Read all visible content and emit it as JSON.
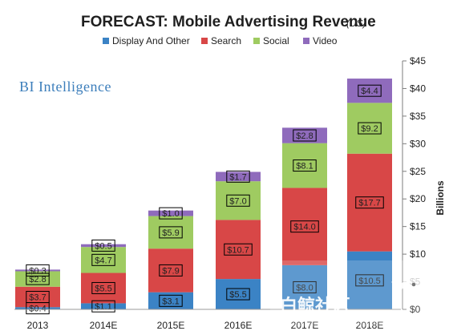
{
  "chart_data": {
    "type": "bar",
    "stacked": true,
    "title": "FORECAST: Mobile Advertising Revenue",
    "title_suffix": "(US)",
    "brand": "BI Intelligence",
    "watermark": "白鲸社区",
    "categories": [
      "2013",
      "2014E",
      "2015E",
      "2016E",
      "2017E",
      "2018E"
    ],
    "series": [
      {
        "name": "Display And Other",
        "color": "#3b83c5",
        "values": [
          0.4,
          1.1,
          3.1,
          5.5,
          8.0,
          10.5
        ],
        "labels": [
          "$0.4",
          "$1.1",
          "$3.1",
          "$5.5",
          "$8.0",
          "$10.5"
        ]
      },
      {
        "name": "Search",
        "color": "#d84747",
        "values": [
          3.7,
          5.5,
          7.9,
          10.7,
          14.0,
          17.7
        ],
        "labels": [
          "$3.7",
          "$5.5",
          "$7.9",
          "$10.7",
          "$14.0",
          "$17.7"
        ]
      },
      {
        "name": "Social",
        "color": "#9fcb61",
        "values": [
          2.8,
          4.7,
          5.9,
          7.0,
          8.1,
          9.2
        ],
        "labels": [
          "$2.8",
          "$4.7",
          "$5.9",
          "$7.0",
          "$8.1",
          "$9.2"
        ]
      },
      {
        "name": "Video",
        "color": "#8f6bbc",
        "values": [
          0.3,
          0.5,
          1.0,
          1.7,
          2.8,
          4.4
        ],
        "labels": [
          "$0.3",
          "$0.5",
          "$1.0",
          "$1.7",
          "$2.8",
          "$4.4"
        ]
      }
    ],
    "ylabel": "Billions",
    "ylim": [
      0,
      45
    ],
    "yticks": [
      0,
      5,
      10,
      15,
      20,
      25,
      30,
      35,
      40,
      45
    ],
    "ytick_labels": [
      "$0",
      "$5",
      "$10",
      "$15",
      "$20",
      "$25",
      "$30",
      "$35",
      "$40",
      "$45"
    ],
    "grid": false,
    "legend_position": "top",
    "yaxis_position": "right"
  }
}
